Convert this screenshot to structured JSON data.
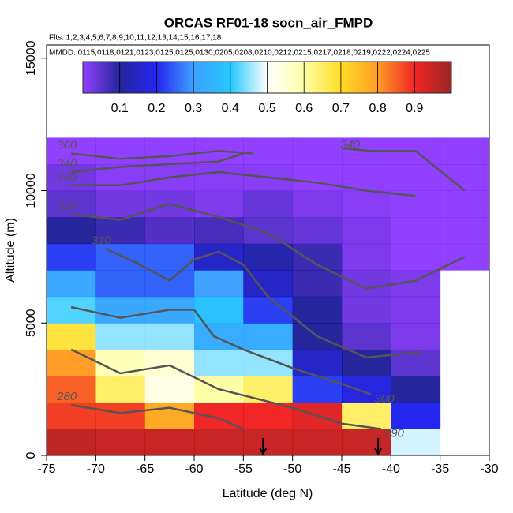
{
  "chart_data": {
    "type": "heatmap",
    "title": "ORCAS RF01-18 socn_air_FMPD",
    "subtitle": "Flts: 1,2,3,4,5,6,7,8,9,10,11,12,13,14,15,16,17,18",
    "annotation": "MMDD: 0115,0118,0121,0123,0125,0125,0130,0205,0208,0210,0212,0215,0217,0218,0219,0222,0224,0225",
    "xlabel": "Latitude (deg N)",
    "ylabel": "Altitude (m)",
    "xlim": [
      -75,
      -30
    ],
    "ylim": [
      0,
      15500
    ],
    "xticks": [
      -75,
      -70,
      -65,
      -60,
      -55,
      -50,
      -45,
      -40,
      -35,
      -30
    ],
    "yticks": [
      0,
      5000,
      10000,
      15000
    ],
    "xbins": [
      -75,
      -70,
      -65,
      -60,
      -55,
      -50,
      -45,
      -40,
      -35,
      -30
    ],
    "ybins": [
      0,
      1000,
      2000,
      3000,
      4000,
      5000,
      6000,
      7000,
      8000,
      9000,
      10000,
      11000,
      12000
    ],
    "z": [
      [
        0.96,
        0.95,
        0.95,
        0.95,
        0.95,
        0.95,
        0.95,
        0.48,
        null
      ],
      [
        0.88,
        0.88,
        0.78,
        0.9,
        0.9,
        0.92,
        0.65,
        0.2,
        null
      ],
      [
        0.85,
        0.65,
        0.53,
        0.6,
        0.65,
        0.22,
        0.18,
        0.1,
        null
      ],
      [
        0.8,
        0.58,
        0.55,
        0.45,
        0.45,
        0.15,
        0.1,
        0.05,
        null
      ],
      [
        0.68,
        0.45,
        0.45,
        0.33,
        0.33,
        0.1,
        0.05,
        0.02,
        null
      ],
      [
        0.42,
        0.32,
        0.32,
        0.38,
        0.22,
        0.1,
        0.03,
        0.02,
        null
      ],
      [
        0.32,
        0.25,
        0.25,
        0.3,
        0.15,
        0.08,
        0.03,
        0.02,
        null
      ],
      [
        0.22,
        0.25,
        0.25,
        0.15,
        0.12,
        0.08,
        0.02,
        0,
        0
      ],
      [
        0.1,
        0.08,
        0.06,
        0.07,
        0.05,
        0.04,
        0.02,
        0,
        0
      ],
      [
        0.05,
        0.03,
        0.03,
        0.02,
        0.04,
        0.02,
        0.01,
        0,
        0
      ],
      [
        0.03,
        0.01,
        0.01,
        0.01,
        0.01,
        0,
        0,
        0,
        0
      ],
      [
        0,
        0,
        0,
        0,
        0,
        0,
        0,
        0,
        0
      ]
    ],
    "colorscale": [
      "#7f1fff",
      "#00008b",
      "#0000ee",
      "#1e90ff",
      "#00bfff",
      "#ffffff",
      "#ffff99",
      "#ffd700",
      "#ff8c00",
      "#ee0000",
      "#8b0000"
    ],
    "clim": [
      0,
      1
    ],
    "cticks": [
      0.1,
      0.2,
      0.3,
      0.4,
      0.5,
      0.6,
      0.7,
      0.8,
      0.9
    ],
    "contour_color": "#555555",
    "contours": [
      {
        "level": 280,
        "x": [
          -72.5,
          -67.5,
          -62.5,
          -57.5,
          -55
        ],
        "y": [
          1900,
          1600,
          1800,
          1400,
          1000
        ]
      },
      {
        "level": 290,
        "x": [
          -72.5,
          -67.5,
          -62.5,
          -57.5,
          -50,
          -45,
          -41
        ],
        "y": [
          4000,
          3100,
          3400,
          2500,
          1800,
          1200,
          1000
        ]
      },
      {
        "level": 300,
        "x": [
          -72.5,
          -67.5,
          -62.5,
          -60,
          -58,
          -55,
          -50,
          -45,
          -42
        ],
        "y": [
          5600,
          5200,
          5500,
          5500,
          4500,
          4000,
          3300,
          2700,
          2300
        ]
      },
      {
        "level": 310,
        "x": [
          -69,
          -66,
          -62.5,
          -60,
          -57.5,
          -55,
          -52.5,
          -47.5,
          -42.5,
          -37
        ],
        "y": [
          7800,
          7300,
          6600,
          7400,
          7700,
          7200,
          6000,
          4500,
          3700,
          3900
        ]
      },
      {
        "level": 320,
        "x": [
          -72.5,
          -67.5,
          -62.5,
          -57.5,
          -52.5,
          -47.5,
          -42.5,
          -37.5,
          -32.5
        ],
        "y": [
          9100,
          8900,
          9500,
          9000,
          8400,
          7200,
          6300,
          6600,
          7500
        ]
      },
      {
        "level": 330,
        "x": [
          -72.5,
          -67.5,
          -62.5,
          -57.5,
          -52.5,
          -47.5,
          -42.5,
          -37.5
        ],
        "y": [
          10200,
          10200,
          10500,
          10700,
          10500,
          10300,
          10000,
          9800
        ]
      },
      {
        "level": 340,
        "x": [
          -72.5,
          -67.5,
          -62.5,
          -57.5,
          -55
        ],
        "y": [
          10700,
          10900,
          11000,
          11100,
          11400
        ]
      },
      {
        "level": 340,
        "x": [
          -45,
          -42,
          -37.5,
          -32.5
        ],
        "y": [
          11600,
          11500,
          11500,
          10000
        ]
      },
      {
        "level": 360,
        "x": [
          -72.5,
          -67.5,
          -62.5,
          -57.5,
          -54
        ],
        "y": [
          11400,
          11200,
          11300,
          11500,
          11400
        ]
      }
    ],
    "arrows_x": [
      -53,
      -41.3
    ]
  }
}
